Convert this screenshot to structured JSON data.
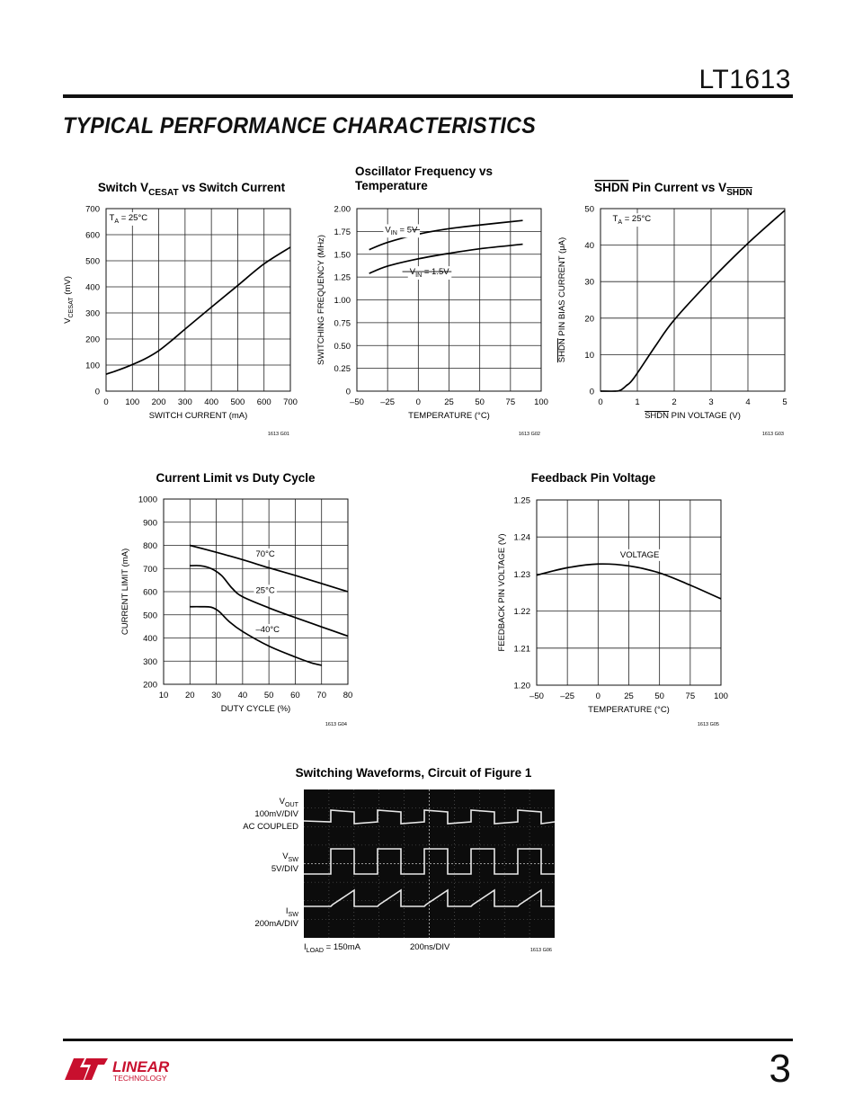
{
  "header": {
    "part_number": "LT1613",
    "section_title": "TYPICAL PERFORMANCE CHARACTERISTICS"
  },
  "footer": {
    "page_number": "3",
    "logo_text": "LINEAR",
    "logo_subtext": "TECHNOLOGY"
  },
  "chart_data": [
    {
      "id": "G01",
      "type": "line",
      "title": [
        "Switch V",
        "CESAT",
        " vs Switch Current"
      ],
      "xlabel": "SWITCH CURRENT (mA)",
      "ylabel": [
        "V",
        "CESAT",
        " (mV)"
      ],
      "xlim": [
        0,
        700
      ],
      "ylim": [
        0,
        700
      ],
      "xticks": [
        0,
        100,
        200,
        300,
        400,
        500,
        600,
        700
      ],
      "yticks": [
        0,
        100,
        200,
        300,
        400,
        500,
        600,
        700
      ],
      "xtick_labels": [
        "0",
        "100",
        "200",
        "300",
        "400",
        "500",
        "600",
        "700"
      ],
      "ytick_labels": [
        "0",
        "100",
        "200",
        "300",
        "400",
        "500",
        "600",
        "700"
      ],
      "grid": true,
      "annotations": [
        {
          "text": [
            "T",
            "A",
            " = 25°C"
          ],
          "x": 12,
          "y": 655
        }
      ],
      "series": [
        {
          "x": [
            0,
            50,
            100,
            150,
            200,
            250,
            300,
            400,
            500,
            600,
            700
          ],
          "y": [
            65,
            82,
            102,
            125,
            155,
            195,
            238,
            322,
            405,
            488,
            552
          ]
        }
      ],
      "code": "1613 G01"
    },
    {
      "id": "G02",
      "type": "line",
      "title": [
        "Oscillator Frequency vs",
        "Temperature"
      ],
      "xlabel": "TEMPERATURE (°C)",
      "ylabel": "SWITCHING FREQUENCY (MHz)",
      "xlim": [
        -50,
        100
      ],
      "ylim": [
        0,
        2.0
      ],
      "xticks": [
        -50,
        -25,
        0,
        25,
        50,
        75,
        100
      ],
      "yticks": [
        0,
        0.25,
        0.5,
        0.75,
        1.0,
        1.25,
        1.5,
        1.75,
        2.0
      ],
      "xtick_labels": [
        "–50",
        "–25",
        "0",
        "25",
        "50",
        "75",
        "100"
      ],
      "ytick_labels": [
        "0",
        "0.25",
        "0.50",
        "0.75",
        "1.00",
        "1.25",
        "1.50",
        "1.75",
        "2.00"
      ],
      "grid": true,
      "annotations": [
        {
          "text": [
            "V",
            "IN",
            " = 5V"
          ],
          "x": -27,
          "y": 1.74,
          "leader_to": [
            -5,
            1.74
          ]
        },
        {
          "text": [
            "V",
            "IN",
            " = 1.5V"
          ],
          "x": -7,
          "y": 1.28,
          "leader_to": [
            -13,
            1.31
          ]
        }
      ],
      "series": [
        {
          "x": [
            -40,
            -25,
            0,
            25,
            50,
            85
          ],
          "y": [
            1.55,
            1.63,
            1.72,
            1.78,
            1.82,
            1.87
          ]
        },
        {
          "x": [
            -40,
            -25,
            0,
            25,
            50,
            85
          ],
          "y": [
            1.29,
            1.37,
            1.45,
            1.51,
            1.56,
            1.61
          ]
        }
      ],
      "code": "1613 G02"
    },
    {
      "id": "G03",
      "type": "line",
      "title": [
        "SHDN",
        " Pin Current vs V",
        "SHDN"
      ],
      "xlabel": [
        "SHDN",
        " PIN VOLTAGE (V)"
      ],
      "ylabel": [
        "SHDN",
        " PIN BIAS CURRENT (μA)"
      ],
      "xlim": [
        0,
        5
      ],
      "ylim": [
        0,
        50
      ],
      "xticks": [
        0,
        1,
        2,
        3,
        4,
        5
      ],
      "yticks": [
        0,
        10,
        20,
        30,
        40,
        50
      ],
      "xtick_labels": [
        "0",
        "1",
        "2",
        "3",
        "4",
        "5"
      ],
      "ytick_labels": [
        "0",
        "10",
        "20",
        "30",
        "40",
        "50"
      ],
      "grid": true,
      "annotations": [
        {
          "text": [
            "T",
            "A",
            " = 25°C"
          ],
          "x": 0.33,
          "y": 46.5
        }
      ],
      "series": [
        {
          "x": [
            0,
            0.4,
            0.55,
            0.7,
            0.9,
            1.5,
            2,
            3,
            4,
            5
          ],
          "y": [
            0,
            0,
            0.3,
            1.5,
            3.5,
            12.5,
            19.5,
            30.5,
            40.5,
            49.5
          ]
        }
      ],
      "code": "1613 G03"
    },
    {
      "id": "G04",
      "type": "line",
      "title": "Current Limit vs Duty Cycle",
      "xlabel": "DUTY CYCLE (%)",
      "ylabel": "CURRENT LIMIT (mA)",
      "xlim": [
        10,
        80
      ],
      "ylim": [
        200,
        1000
      ],
      "xticks": [
        10,
        20,
        30,
        40,
        50,
        60,
        70,
        80
      ],
      "yticks": [
        200,
        300,
        400,
        500,
        600,
        700,
        800,
        900,
        1000
      ],
      "xtick_labels": [
        "10",
        "20",
        "30",
        "40",
        "50",
        "60",
        "70",
        "80"
      ],
      "ytick_labels": [
        "200",
        "300",
        "400",
        "500",
        "600",
        "700",
        "800",
        "900",
        "1000"
      ],
      "grid": true,
      "annotations": [
        {
          "text": "70°C",
          "x": 45,
          "y": 752
        },
        {
          "text": "25°C",
          "x": 45,
          "y": 595
        },
        {
          "text": "–40°C",
          "x": 45,
          "y": 425
        }
      ],
      "series": [
        {
          "name": "70°C",
          "x": [
            20,
            30,
            40,
            50,
            60,
            70,
            80
          ],
          "y": [
            800,
            770,
            738,
            703,
            670,
            635,
            600
          ]
        },
        {
          "name": "25°C",
          "x": [
            20,
            24,
            28,
            32,
            36,
            40,
            50,
            60,
            70,
            80
          ],
          "y": [
            712,
            712,
            700,
            670,
            615,
            578,
            530,
            488,
            448,
            408
          ]
        },
        {
          "name": "–40°C",
          "x": [
            20,
            24,
            28,
            31,
            35,
            40,
            50,
            60,
            66,
            70
          ],
          "y": [
            535,
            535,
            533,
            515,
            470,
            428,
            365,
            318,
            293,
            282
          ]
        }
      ],
      "code": "1613 G04"
    },
    {
      "id": "G05",
      "type": "line",
      "title": "Feedback Pin Voltage",
      "xlabel": "TEMPERATURE (°C)",
      "ylabel": "FEEDBACK PIN VOLTAGE (V)",
      "xlim": [
        -50,
        100
      ],
      "ylim": [
        1.2,
        1.25
      ],
      "xticks": [
        -50,
        -25,
        0,
        25,
        50,
        75,
        100
      ],
      "yticks": [
        1.2,
        1.21,
        1.22,
        1.23,
        1.24,
        1.25
      ],
      "xtick_labels": [
        "–50",
        "–25",
        "0",
        "25",
        "50",
        "75",
        "100"
      ],
      "ytick_labels": [
        "1.20",
        "1.21",
        "1.22",
        "1.23",
        "1.24",
        "1.25"
      ],
      "grid": true,
      "annotations": [
        {
          "text": "VOLTAGE",
          "x": 18,
          "y": 1.2345
        }
      ],
      "series": [
        {
          "x": [
            -50,
            -25,
            0,
            25,
            50,
            75,
            100
          ],
          "y": [
            1.2297,
            1.2317,
            1.2327,
            1.2322,
            1.2303,
            1.227,
            1.2233
          ]
        }
      ],
      "code": "1613 G05"
    }
  ],
  "scope": {
    "title": "Switching Waveforms, Circuit of Figure 1",
    "labels": [
      {
        "lines": [
          [
            "V",
            "OUT"
          ],
          [
            "100mV/DIV"
          ],
          [
            "AC COUPLED"
          ]
        ]
      },
      {
        "lines": [
          [
            "V",
            "SW"
          ],
          [
            "5V/DIV"
          ]
        ]
      },
      {
        "lines": [
          [
            "I",
            "SW"
          ],
          [
            "200mA/DIV"
          ]
        ]
      }
    ],
    "load": [
      "I",
      "LOAD",
      " = 150mA"
    ],
    "timebase": "200ns/DIV",
    "code": "1613 G06"
  }
}
